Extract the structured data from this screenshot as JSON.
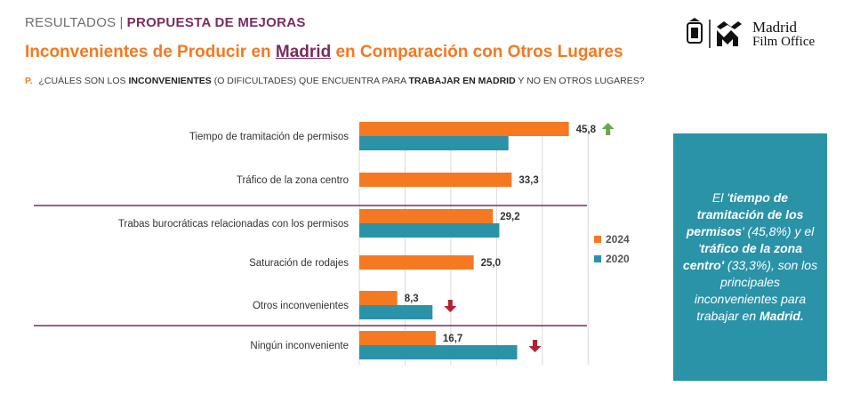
{
  "header": {
    "kicker": "RESULTADOS",
    "section": "PROPUESTA DE MEJORAS",
    "title_pre": "Inconvenientes de Producir en ",
    "title_highlight": "Madrid",
    "title_post": " en Comparación con Otros Lugares",
    "question_label": "P.",
    "question_parts": [
      "¿CUÁLES SON LOS ",
      "INCONVENIENTES",
      " (O DIFICULTADES) QUE ENCUENTRA PARA ",
      "TRABAJAR EN MADRID",
      " Y NO EN OTROS LUGARES?"
    ]
  },
  "logo": {
    "line1": "Madrid",
    "line2": "Film Office"
  },
  "colors": {
    "series_2024": "#f47920",
    "series_2020": "#2a93a8",
    "up_arrow": "#6aa84f",
    "down_arrow": "#b22234",
    "divider": "#7b2c5f"
  },
  "chart_data": {
    "type": "bar",
    "orientation": "horizontal",
    "categories": [
      "Tiempo de tramitación de permisos",
      "Tráfico de la zona centro",
      "Trabas burocráticas relacionadas con los permisos",
      "Saturación de rodajes",
      "Otros inconvenientes",
      "Ningún inconveniente"
    ],
    "series": [
      {
        "name": "2024",
        "values": [
          45.8,
          33.3,
          29.2,
          25.0,
          8.3,
          16.7
        ],
        "labels": [
          "45,8",
          "33,3",
          "29,2",
          "25,0",
          "8,3",
          "16,7"
        ]
      },
      {
        "name": "2020",
        "values": [
          32.6,
          null,
          30.6,
          null,
          16.0,
          34.5
        ],
        "labels": []
      }
    ],
    "trend_markers": [
      "up",
      null,
      null,
      null,
      "down",
      "down"
    ],
    "xlim": [
      0,
      50
    ],
    "grid": true,
    "legend_position": "right"
  },
  "panel": {
    "t1": "El '",
    "b1": "tiempo de tramitación de los permisos",
    "t2": "' (45,8%) y el '",
    "b2": "tráfico de la zona centro'",
    "t3": " (33,3%), son los principales inconvenientes para trabajar en ",
    "b3": "Madrid."
  }
}
